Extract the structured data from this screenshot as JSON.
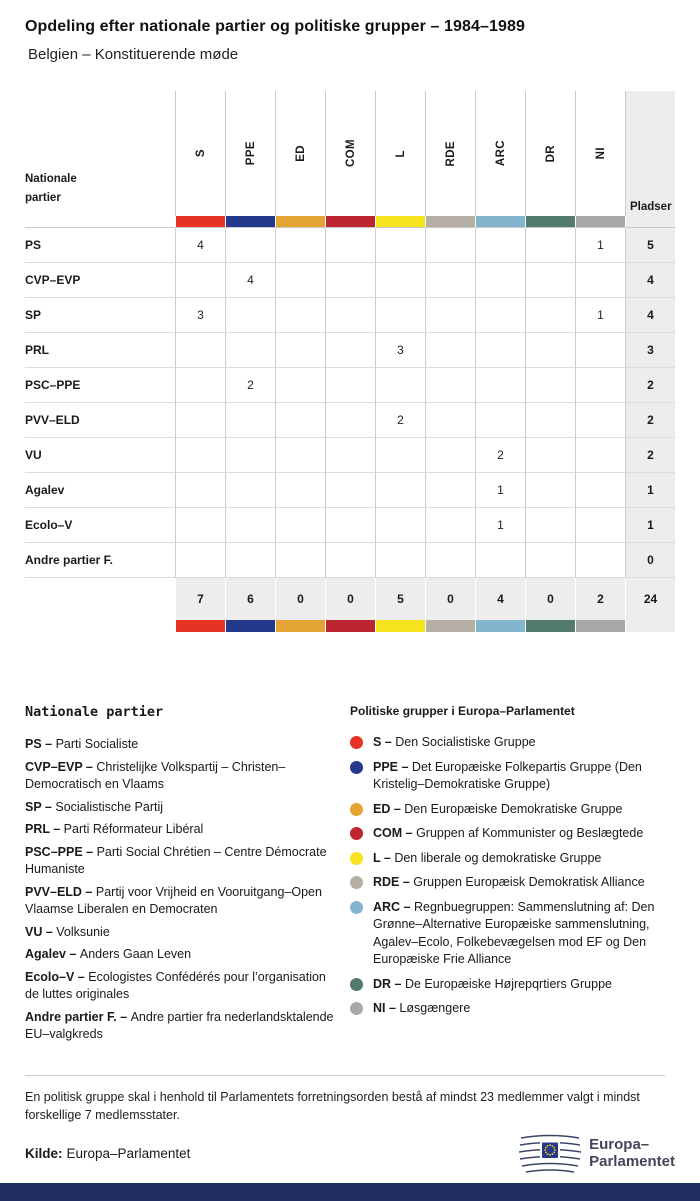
{
  "page": {
    "title": "Opdeling efter nationale partier og politiske grupper – 1984–1989",
    "subtitle": "Belgien – Konstituerende møde"
  },
  "table": {
    "row_header": "Nationale partier",
    "seats_header": "Pladser",
    "groups": [
      {
        "code": "S",
        "color": "#e63323"
      },
      {
        "code": "PPE",
        "color": "#24388c"
      },
      {
        "code": "ED",
        "color": "#e3a433"
      },
      {
        "code": "COM",
        "color": "#bd2531"
      },
      {
        "code": "L",
        "color": "#f6e31d"
      },
      {
        "code": "RDE",
        "color": "#b5afa5"
      },
      {
        "code": "ARC",
        "color": "#84b5ce"
      },
      {
        "code": "DR",
        "color": "#527a6e"
      },
      {
        "code": "NI",
        "color": "#a8a8a8"
      }
    ],
    "rows": [
      {
        "party": "PS",
        "values": [
          "4",
          "",
          "",
          "",
          "",
          "",
          "",
          "",
          "1"
        ],
        "seats": "5"
      },
      {
        "party": "CVP–EVP",
        "values": [
          "",
          "4",
          "",
          "",
          "",
          "",
          "",
          "",
          ""
        ],
        "seats": "4"
      },
      {
        "party": "SP",
        "values": [
          "3",
          "",
          "",
          "",
          "",
          "",
          "",
          "",
          "1"
        ],
        "seats": "4"
      },
      {
        "party": "PRL",
        "values": [
          "",
          "",
          "",
          "",
          "3",
          "",
          "",
          "",
          ""
        ],
        "seats": "3"
      },
      {
        "party": "PSC–PPE",
        "values": [
          "",
          "2",
          "",
          "",
          "",
          "",
          "",
          "",
          ""
        ],
        "seats": "2"
      },
      {
        "party": "PVV–ELD",
        "values": [
          "",
          "",
          "",
          "",
          "2",
          "",
          "",
          "",
          ""
        ],
        "seats": "2"
      },
      {
        "party": "VU",
        "values": [
          "",
          "",
          "",
          "",
          "",
          "",
          "2",
          "",
          ""
        ],
        "seats": "2"
      },
      {
        "party": "Agalev",
        "values": [
          "",
          "",
          "",
          "",
          "",
          "",
          "1",
          "",
          ""
        ],
        "seats": "1"
      },
      {
        "party": "Ecolo–V",
        "values": [
          "",
          "",
          "",
          "",
          "",
          "",
          "1",
          "",
          ""
        ],
        "seats": "1"
      },
      {
        "party": "Andre partier F.",
        "values": [
          "",
          "",
          "",
          "",
          "",
          "",
          "",
          "",
          ""
        ],
        "seats": "0"
      }
    ],
    "totals": [
      "7",
      "6",
      "0",
      "0",
      "5",
      "0",
      "4",
      "0",
      "2"
    ],
    "total_seats": "24"
  },
  "legend": {
    "separator": "–",
    "parties_title": "Nationale partier",
    "parties": [
      {
        "abbr": "PS",
        "name": "Parti Socialiste"
      },
      {
        "abbr": "CVP–EVP",
        "name": "Christelijke Volkspartij – Christen–Democratisch en Vlaams"
      },
      {
        "abbr": "SP",
        "name": "Socialistische Partij"
      },
      {
        "abbr": "PRL",
        "name": "Parti Réformateur Libéral"
      },
      {
        "abbr": "PSC–PPE",
        "name": "Parti Social Chrétien – Centre Démocrate Humaniste"
      },
      {
        "abbr": "PVV–ELD",
        "name": "Partij voor Vrijheid en Vooruitgang–Open Vlaamse Liberalen en Democraten"
      },
      {
        "abbr": "VU",
        "name": "Volksunie"
      },
      {
        "abbr": "Agalev",
        "name": "Anders Gaan Leven"
      },
      {
        "abbr": "Ecolo–V",
        "name": "Ecologistes Confédérés pour l’organisation de luttes originales"
      },
      {
        "abbr": "Andre partier F.",
        "name": "Andre partier fra nederlandsktalende EU–valgkreds"
      }
    ],
    "groups_title": "Politiske grupper i Europa–Parlamentet",
    "groups": [
      {
        "code": "S",
        "text": "Den Socialistiske Gruppe"
      },
      {
        "code": "PPE",
        "text": "Det Europæiske Folkepartis Gruppe (Den Kristelig–Demokratiske Gruppe)"
      },
      {
        "code": "ED",
        "text": "Den Europæiske Demokratiske Gruppe"
      },
      {
        "code": "COM",
        "text": "Gruppen af Kommunister og Beslægtede"
      },
      {
        "code": "L",
        "text": "Den liberale og demokratiske Gruppe"
      },
      {
        "code": "RDE",
        "text": "Gruppen Europæisk Demokratisk Alliance"
      },
      {
        "code": "ARC",
        "text": "Regnbuegruppen: Sammenslutning af: Den Grønne–Alternative Europæiske sammenslutning, Agalev–Ecolo, Folkebevægelsen mod EF og Den Europæiske Frie Alliance"
      },
      {
        "code": "DR",
        "text": "De Europæiske Højrepqrtiers Gruppe"
      },
      {
        "code": "NI",
        "text": "Løsgængere"
      }
    ]
  },
  "footnote": "En politisk gruppe skal i henhold til Parlamentets forretningsorden bestå af mindst 23 medlemmer valgt i mindst forskellige 7 medlemsstater.",
  "source": {
    "label": "Kilde:",
    "value": "Europa–Parlamentet"
  },
  "logo": {
    "line1": "Europa–",
    "line2": "Parlamentet"
  },
  "chart_data": {
    "type": "table",
    "title": "Opdeling efter nationale partier og politiske grupper – 1984–1989",
    "subtitle": "Belgien – Konstituerende møde",
    "columns": [
      "S",
      "PPE",
      "ED",
      "COM",
      "L",
      "RDE",
      "ARC",
      "DR",
      "NI",
      "Pladser"
    ],
    "row_labels": [
      "PS",
      "CVP–EVP",
      "SP",
      "PRL",
      "PSC–PPE",
      "PVV–ELD",
      "VU",
      "Agalev",
      "Ecolo–V",
      "Andre partier F."
    ],
    "matrix": [
      [
        4,
        null,
        null,
        null,
        null,
        null,
        null,
        null,
        1,
        5
      ],
      [
        null,
        4,
        null,
        null,
        null,
        null,
        null,
        null,
        null,
        4
      ],
      [
        3,
        null,
        null,
        null,
        null,
        null,
        null,
        null,
        1,
        4
      ],
      [
        null,
        null,
        null,
        null,
        3,
        null,
        null,
        null,
        null,
        3
      ],
      [
        null,
        2,
        null,
        null,
        null,
        null,
        null,
        null,
        null,
        2
      ],
      [
        null,
        null,
        null,
        null,
        2,
        null,
        null,
        null,
        null,
        2
      ],
      [
        null,
        null,
        null,
        null,
        null,
        null,
        2,
        null,
        null,
        2
      ],
      [
        null,
        null,
        null,
        null,
        null,
        null,
        1,
        null,
        null,
        1
      ],
      [
        null,
        null,
        null,
        null,
        null,
        null,
        1,
        null,
        null,
        1
      ],
      [
        null,
        null,
        null,
        null,
        null,
        null,
        null,
        null,
        null,
        0
      ]
    ],
    "totals": [
      7,
      6,
      0,
      0,
      5,
      0,
      4,
      0,
      2,
      24
    ]
  }
}
